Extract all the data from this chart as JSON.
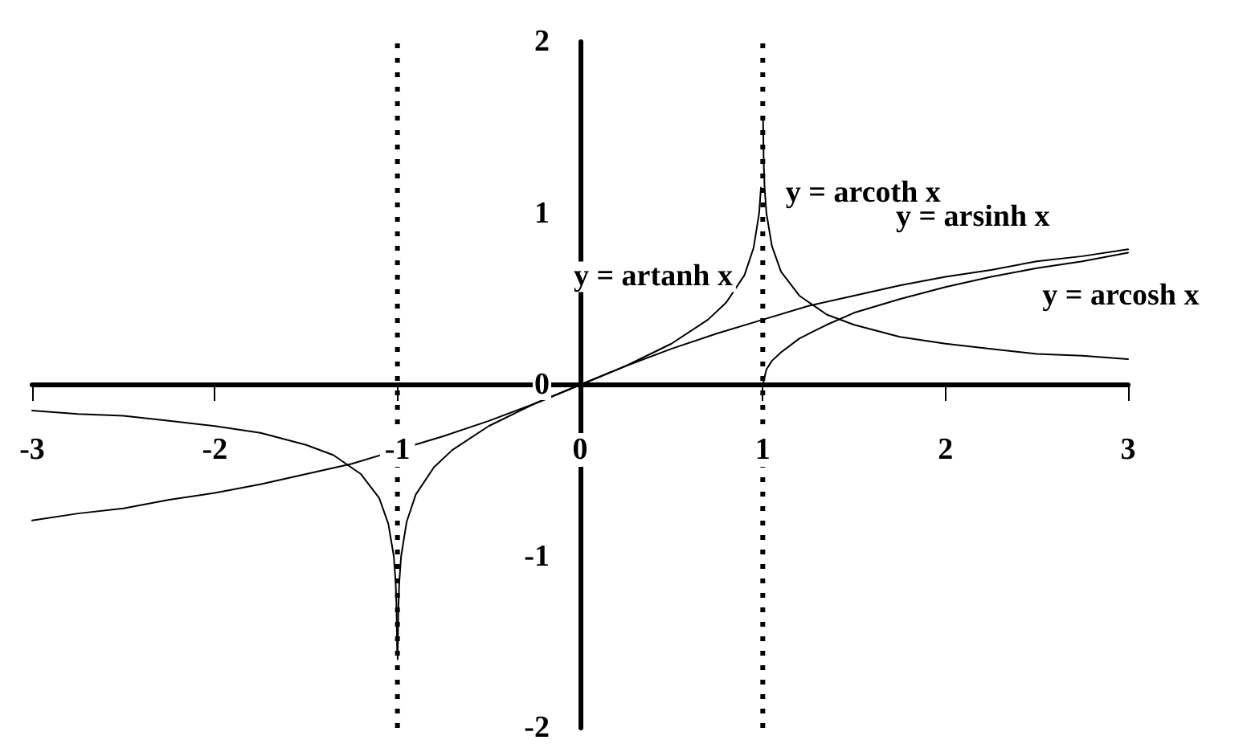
{
  "chart_data": {
    "type": "line",
    "xlim": [
      -3,
      3
    ],
    "ylim": [
      -2,
      2
    ],
    "xticks": [
      -3,
      -2,
      -1,
      0,
      1,
      2,
      3
    ],
    "yticks": [
      -2,
      -1,
      0,
      1,
      2
    ],
    "grid": false,
    "marker": "none",
    "line_style": "solid",
    "series": [
      {
        "name": "y = arsinh x",
        "color": "#000000",
        "x": [
          -3,
          -2.75,
          -2.5,
          -2.25,
          -2,
          -1.75,
          -1.5,
          -1.25,
          -1,
          -0.75,
          -0.5,
          -0.25,
          0,
          0.25,
          0.5,
          0.75,
          1,
          1.25,
          1.5,
          1.75,
          2,
          2.25,
          2.5,
          2.75,
          3
        ],
        "values": [
          -0.79,
          -0.75,
          -0.72,
          -0.67,
          -0.63,
          -0.58,
          -0.52,
          -0.46,
          -0.38,
          -0.3,
          -0.21,
          -0.11,
          0,
          0.11,
          0.21,
          0.3,
          0.38,
          0.46,
          0.52,
          0.58,
          0.63,
          0.67,
          0.72,
          0.75,
          0.79
        ]
      },
      {
        "name": "y = arcosh x",
        "color": "#000000",
        "x": [
          1,
          1.02,
          1.05,
          1.1,
          1.2,
          1.35,
          1.5,
          1.75,
          2,
          2.25,
          2.5,
          2.75,
          3
        ],
        "values": [
          0,
          0.09,
          0.14,
          0.19,
          0.27,
          0.35,
          0.42,
          0.5,
          0.57,
          0.63,
          0.68,
          0.72,
          0.77
        ]
      },
      {
        "name": "y = artanh x",
        "color": "#000000",
        "x": [
          -0.999,
          -0.995,
          -0.99,
          -0.98,
          -0.95,
          -0.9,
          -0.8,
          -0.7,
          -0.5,
          -0.25,
          0,
          0.25,
          0.5,
          0.7,
          0.8,
          0.9,
          0.95,
          0.98,
          0.99
        ],
        "values": [
          -1.6,
          -1.3,
          -1.15,
          -1,
          -0.8,
          -0.64,
          -0.48,
          -0.38,
          -0.24,
          -0.11,
          0,
          0.11,
          0.24,
          0.38,
          0.48,
          0.64,
          0.8,
          1,
          1.15
        ]
      },
      {
        "name": "y = arcoth x",
        "color": "#000000",
        "x": [
          -3,
          -2.75,
          -2.5,
          -2.25,
          -2,
          -1.75,
          -1.5,
          -1.35,
          -1.2,
          -1.1,
          -1.05,
          -1.02,
          -1.01,
          -1.005,
          -1.0015,
          0,
          1.0015,
          1.005,
          1.01,
          1.02,
          1.05,
          1.1,
          1.2,
          1.35,
          1.5,
          1.75,
          2,
          2.25,
          2.5,
          2.75,
          3
        ],
        "values": [
          -0.15,
          -0.17,
          -0.18,
          -0.21,
          -0.24,
          -0.28,
          -0.35,
          -0.41,
          -0.52,
          -0.66,
          -0.81,
          -1,
          -1.15,
          -1.3,
          -1.56,
          null,
          1.56,
          1.3,
          1.15,
          1,
          0.81,
          0.66,
          0.52,
          0.41,
          0.35,
          0.28,
          0.24,
          0.21,
          0.18,
          0.17,
          0.15
        ]
      }
    ],
    "ref_lines": [
      {
        "axis": "x",
        "value": -1,
        "color": "#000000",
        "line_style": "dotted"
      },
      {
        "axis": "x",
        "value": 1,
        "color": "#000000",
        "line_style": "dotted"
      }
    ]
  }
}
